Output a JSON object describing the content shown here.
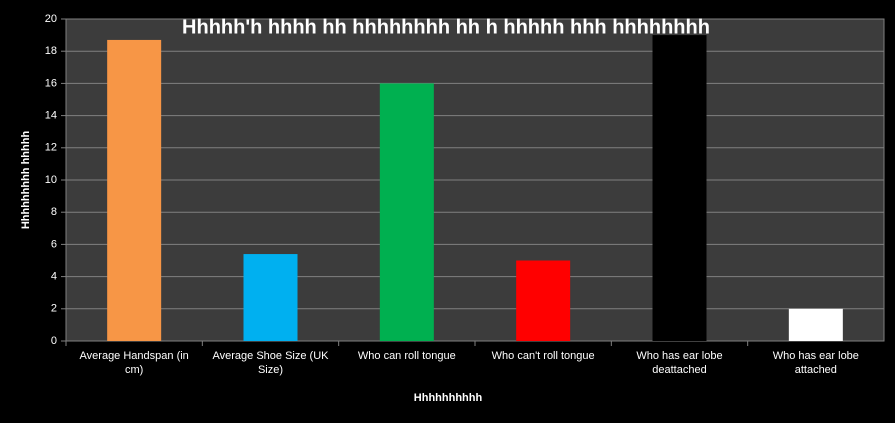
{
  "chart_data": {
    "type": "bar",
    "title": "Hhhhh'h hhhh hh hhhhhhhh hh h hhhhh hhh hhhhhhhh",
    "xlabel": "Hhhhhhhhhh",
    "ylabel": "Hhhhhhhhh hhhhh",
    "categories": [
      "Average Handspan (in cm)",
      "Average Shoe Size (UK Size)",
      "Who can roll tongue",
      "Who can't roll tongue",
      "Who has ear lobe deattached",
      "Who has ear lobe attached"
    ],
    "values": [
      18.7,
      5.4,
      16,
      5,
      19,
      2
    ],
    "colors": [
      "#f79646",
      "#00b0f0",
      "#00b050",
      "#ff0000",
      "#000000",
      "#ffffff"
    ],
    "ylim": [
      0,
      20
    ],
    "yticks": [
      0,
      2,
      4,
      6,
      8,
      10,
      12,
      14,
      16,
      18,
      20
    ],
    "grid": true
  }
}
